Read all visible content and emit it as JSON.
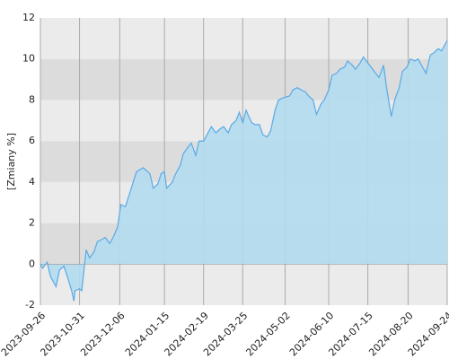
{
  "chart_data": {
    "type": "area",
    "ylabel": "[Zmiany %]",
    "x": [
      "2023-09-26",
      "2023-09-28",
      "2023-10-02",
      "2023-10-05",
      "2023-10-10",
      "2023-10-13",
      "2023-10-17",
      "2023-10-20",
      "2023-10-24",
      "2023-10-26",
      "2023-10-27",
      "2023-10-31",
      "2023-11-02",
      "2023-11-06",
      "2023-11-09",
      "2023-11-13",
      "2023-11-16",
      "2023-11-20",
      "2023-11-23",
      "2023-11-27",
      "2023-11-30",
      "2023-12-04",
      "2023-12-07",
      "2023-12-11",
      "2023-12-14",
      "2023-12-18",
      "2023-12-21",
      "2023-12-27",
      "2024-01-02",
      "2024-01-05",
      "2024-01-09",
      "2024-01-12",
      "2024-01-15",
      "2024-01-17",
      "2024-01-22",
      "2024-01-25",
      "2024-01-29",
      "2024-02-01",
      "2024-02-05",
      "2024-02-08",
      "2024-02-12",
      "2024-02-15",
      "2024-02-19",
      "2024-02-22",
      "2024-02-26",
      "2024-03-01",
      "2024-03-05",
      "2024-03-08",
      "2024-03-12",
      "2024-03-15",
      "2024-03-19",
      "2024-03-22",
      "2024-03-25",
      "2024-03-28",
      "2024-04-02",
      "2024-04-05",
      "2024-04-09",
      "2024-04-12",
      "2024-04-16",
      "2024-04-19",
      "2024-04-23",
      "2024-04-26",
      "2024-04-30",
      "2024-05-06",
      "2024-05-09",
      "2024-05-13",
      "2024-05-16",
      "2024-05-20",
      "2024-05-23",
      "2024-05-27",
      "2024-05-30",
      "2024-06-03",
      "2024-06-06",
      "2024-06-10",
      "2024-06-13",
      "2024-06-17",
      "2024-06-20",
      "2024-06-24",
      "2024-06-27",
      "2024-07-01",
      "2024-07-04",
      "2024-07-08",
      "2024-07-11",
      "2024-07-15",
      "2024-07-18",
      "2024-07-22",
      "2024-07-25",
      "2024-07-29",
      "2024-08-01",
      "2024-08-05",
      "2024-08-08",
      "2024-08-12",
      "2024-08-15",
      "2024-08-19",
      "2024-08-22",
      "2024-08-26",
      "2024-08-29",
      "2024-09-02",
      "2024-09-05",
      "2024-09-09",
      "2024-09-12",
      "2024-09-16",
      "2024-09-19",
      "2024-09-24"
    ],
    "series": [
      {
        "color": "#5aaae6",
        "fill": "#b3dcef",
        "values": [
          0.0,
          -0.2,
          0.1,
          -0.6,
          -1.1,
          -0.3,
          -0.1,
          -0.6,
          -1.3,
          -1.8,
          -1.3,
          -1.2,
          -1.3,
          0.7,
          0.3,
          0.6,
          1.1,
          1.2,
          1.3,
          1.0,
          1.3,
          1.8,
          2.9,
          2.8,
          3.3,
          4.0,
          4.5,
          4.7,
          4.4,
          3.7,
          3.9,
          4.4,
          4.5,
          3.7,
          4.0,
          4.4,
          4.8,
          5.4,
          5.7,
          5.9,
          5.3,
          6.0,
          6.0,
          6.3,
          6.7,
          6.4,
          6.6,
          6.7,
          6.4,
          6.8,
          7.0,
          7.4,
          6.9,
          7.5,
          6.9,
          6.8,
          6.8,
          6.3,
          6.2,
          6.5,
          7.5,
          8.0,
          8.1,
          8.2,
          8.5,
          8.6,
          8.5,
          8.4,
          8.2,
          8.0,
          7.3,
          7.8,
          8.0,
          8.5,
          9.2,
          9.3,
          9.5,
          9.6,
          9.9,
          9.7,
          9.5,
          9.8,
          10.1,
          9.8,
          9.6,
          9.3,
          9.1,
          9.7,
          8.5,
          7.2,
          8.0,
          8.6,
          9.4,
          9.6,
          10.0,
          9.9,
          10.0,
          9.6,
          9.3,
          10.2,
          10.3,
          10.5,
          10.4,
          10.9
        ]
      }
    ],
    "xlim": [
      "2023-09-26",
      "2024-09-24"
    ],
    "xticks": [
      "2023-09-26",
      "2023-10-31",
      "2023-12-06",
      "2024-01-15",
      "2024-02-19",
      "2024-03-25",
      "2024-05-02",
      "2024-06-10",
      "2024-07-15",
      "2024-08-20",
      "2024-09-24"
    ],
    "ylim": [
      -2,
      12
    ],
    "yticks": [
      -2,
      0,
      2,
      4,
      6,
      8,
      10,
      12
    ],
    "band_colors": [
      "#ebebeb",
      "#dcdcdc"
    ],
    "grid": true
  }
}
